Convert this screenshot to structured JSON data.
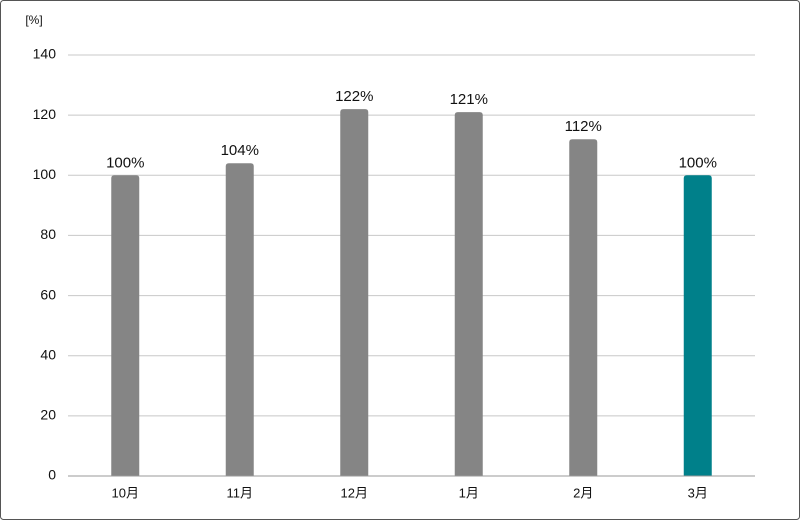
{
  "chart_data": {
    "type": "bar",
    "y_axis_label": "[%]",
    "categories": [
      "10月",
      "11月",
      "12月",
      "1月",
      "2月",
      "3月"
    ],
    "values": [
      100,
      104,
      122,
      121,
      112,
      100
    ],
    "value_labels": [
      "100%",
      "104%",
      "122%",
      "121%",
      "112%",
      "100%"
    ],
    "colors": [
      "#858585",
      "#858585",
      "#858585",
      "#858585",
      "#858585",
      "#00808a"
    ],
    "ylim": [
      0,
      140
    ],
    "yticks": [
      0,
      20,
      40,
      60,
      80,
      100,
      120,
      140
    ],
    "grid": true
  }
}
